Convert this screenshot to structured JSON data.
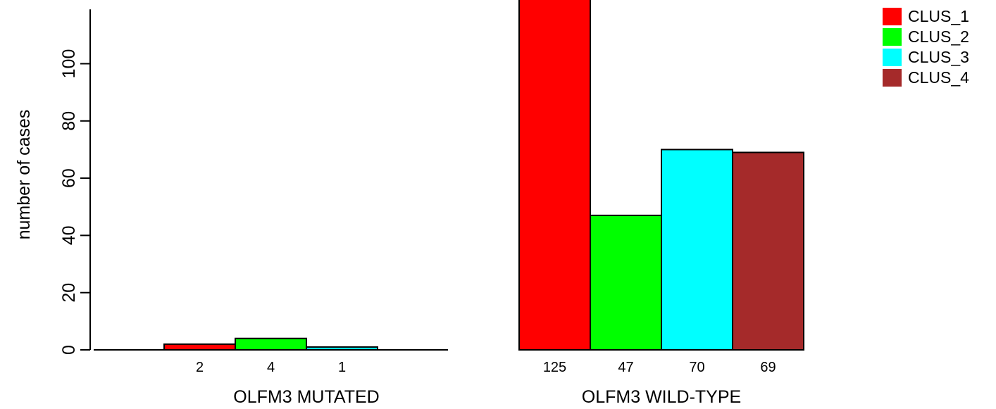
{
  "chart_data": {
    "type": "bar",
    "ylabel": "number of cases",
    "ylim": [
      0,
      119
    ],
    "yticks": [
      0,
      20,
      40,
      60,
      80,
      100
    ],
    "groups": [
      {
        "label": "OLFM3 MUTATED",
        "bars": [
          {
            "series": "CLUS_1",
            "value": 2,
            "label": "2"
          },
          {
            "series": "CLUS_2",
            "value": 4,
            "label": "4"
          },
          {
            "series": "CLUS_3",
            "value": 1,
            "label": "1"
          },
          {
            "series": "CLUS_4",
            "value": 0,
            "label": ""
          }
        ]
      },
      {
        "label": "OLFM3 WILD-TYPE",
        "bars": [
          {
            "series": "CLUS_1",
            "value": 125,
            "label": "125"
          },
          {
            "series": "CLUS_2",
            "value": 47,
            "label": "47"
          },
          {
            "series": "CLUS_3",
            "value": 70,
            "label": "70"
          },
          {
            "series": "CLUS_4",
            "value": 69,
            "label": "69"
          }
        ]
      }
    ],
    "legend": [
      {
        "name": "CLUS_1",
        "color": "#ff0000"
      },
      {
        "name": "CLUS_2",
        "color": "#00ff00"
      },
      {
        "name": "CLUS_3",
        "color": "#00ffff"
      },
      {
        "name": "CLUS_4",
        "color": "#a52a2a"
      }
    ],
    "legend_position": "top-right",
    "grid": false
  }
}
